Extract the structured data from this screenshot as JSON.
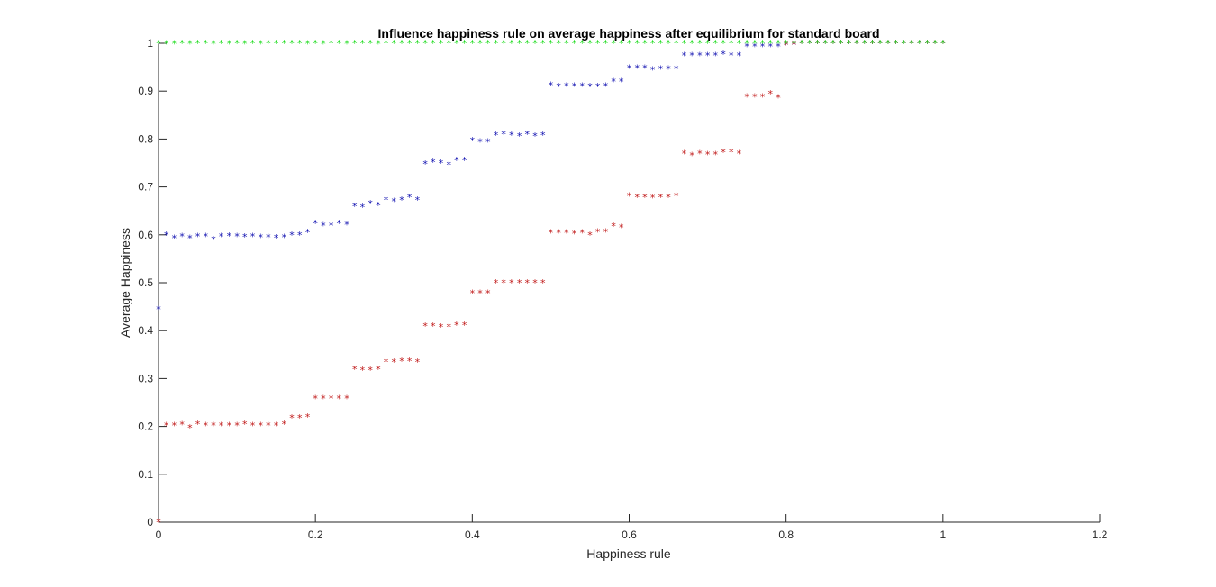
{
  "chart_data": {
    "type": "scatter",
    "title": "Influence happiness rule on average happiness after equilibrium for standard board",
    "xlabel": "Happiness rule",
    "ylabel": "Average Happiness",
    "xlim": [
      0,
      1.2
    ],
    "ylim": [
      0,
      1
    ],
    "xticks": [
      "0",
      "0.2",
      "0.4",
      "0.6",
      "0.8",
      "1",
      "1.2"
    ],
    "yticks": [
      "0",
      "0.1",
      "0.2",
      "0.3",
      "0.4",
      "0.5",
      "0.6",
      "0.7",
      "0.8",
      "0.9",
      "1"
    ],
    "grid": false,
    "legend": "none",
    "marker": "*",
    "colors": {
      "series1": "#1010b0",
      "series2": "#c01818",
      "series3": "#22dd22"
    },
    "series": [
      {
        "color": "#1010b0",
        "x": [
          0,
          0.01,
          0.02,
          0.03,
          0.04,
          0.05,
          0.06,
          0.07,
          0.08,
          0.09,
          0.1,
          0.11,
          0.12,
          0.13,
          0.14,
          0.15,
          0.16,
          0.17,
          0.18,
          0.19,
          0.2,
          0.21,
          0.22,
          0.23,
          0.24,
          0.25,
          0.26,
          0.27,
          0.28,
          0.29,
          0.3,
          0.31,
          0.32,
          0.33,
          0.34,
          0.35,
          0.36,
          0.37,
          0.38,
          0.39,
          0.4,
          0.41,
          0.42,
          0.43,
          0.44,
          0.45,
          0.46,
          0.47,
          0.48,
          0.49,
          0.5,
          0.51,
          0.52,
          0.53,
          0.54,
          0.55,
          0.56,
          0.57,
          0.58,
          0.59,
          0.6,
          0.61,
          0.62,
          0.63,
          0.64,
          0.65,
          0.66,
          0.67,
          0.68,
          0.69,
          0.7,
          0.71,
          0.72,
          0.73,
          0.74,
          0.75,
          0.76,
          0.77,
          0.78,
          0.79,
          0.8,
          0.81,
          0.82,
          0.83,
          0.84,
          0.85,
          0.86,
          0.87,
          0.88,
          0.89,
          0.9,
          0.91,
          0.92,
          0.93,
          0.94,
          0.95,
          0.96,
          0.97,
          0.98,
          0.99,
          1.0
        ],
        "y": [
          0.445,
          0.6,
          0.593,
          0.597,
          0.593,
          0.597,
          0.597,
          0.59,
          0.597,
          0.598,
          0.597,
          0.596,
          0.597,
          0.595,
          0.595,
          0.594,
          0.595,
          0.6,
          0.6,
          0.605,
          0.624,
          0.619,
          0.619,
          0.624,
          0.621,
          0.66,
          0.658,
          0.665,
          0.662,
          0.673,
          0.67,
          0.673,
          0.679,
          0.673,
          0.748,
          0.752,
          0.75,
          0.746,
          0.756,
          0.756,
          0.797,
          0.794,
          0.794,
          0.808,
          0.81,
          0.808,
          0.806,
          0.81,
          0.806,
          0.808,
          0.913,
          0.91,
          0.911,
          0.911,
          0.911,
          0.91,
          0.91,
          0.911,
          0.92,
          0.92,
          0.948,
          0.948,
          0.948,
          0.945,
          0.946,
          0.946,
          0.946,
          0.975,
          0.975,
          0.975,
          0.975,
          0.975,
          0.977,
          0.975,
          0.975,
          0.993,
          0.993,
          0.993,
          0.993,
          0.993,
          0.997,
          0.997,
          1.0,
          1.0,
          1.0,
          1.0,
          1.0,
          1.0,
          1.0,
          1.0,
          1.0,
          1.0,
          1.0,
          1.0,
          1.0,
          1.0,
          1.0,
          1.0,
          1.0,
          1.0,
          1.0
        ]
      },
      {
        "color": "#c01818",
        "x": [
          0,
          0.01,
          0.02,
          0.03,
          0.04,
          0.05,
          0.06,
          0.07,
          0.08,
          0.09,
          0.1,
          0.11,
          0.12,
          0.13,
          0.14,
          0.15,
          0.16,
          0.17,
          0.18,
          0.19,
          0.2,
          0.21,
          0.22,
          0.23,
          0.24,
          0.25,
          0.26,
          0.27,
          0.28,
          0.29,
          0.3,
          0.31,
          0.32,
          0.33,
          0.34,
          0.35,
          0.36,
          0.37,
          0.38,
          0.39,
          0.4,
          0.41,
          0.42,
          0.43,
          0.44,
          0.45,
          0.46,
          0.47,
          0.48,
          0.49,
          0.5,
          0.51,
          0.52,
          0.53,
          0.54,
          0.55,
          0.56,
          0.57,
          0.58,
          0.59,
          0.6,
          0.61,
          0.62,
          0.63,
          0.64,
          0.65,
          0.66,
          0.67,
          0.68,
          0.69,
          0.7,
          0.71,
          0.72,
          0.73,
          0.74,
          0.75,
          0.76,
          0.77,
          0.78,
          0.79,
          0.8,
          0.81,
          0.82,
          0.83,
          0.84,
          0.85,
          0.86,
          0.87,
          0.88,
          0.89,
          0.9,
          0.91,
          0.92,
          0.93,
          0.94,
          0.95,
          0.96,
          0.97,
          0.98,
          0.99,
          1.0
        ],
        "y": [
          0.0,
          0.202,
          0.202,
          0.204,
          0.197,
          0.205,
          0.202,
          0.202,
          0.202,
          0.202,
          0.202,
          0.205,
          0.202,
          0.202,
          0.202,
          0.202,
          0.205,
          0.218,
          0.218,
          0.22,
          0.258,
          0.258,
          0.258,
          0.258,
          0.258,
          0.32,
          0.318,
          0.318,
          0.32,
          0.335,
          0.335,
          0.336,
          0.336,
          0.335,
          0.41,
          0.41,
          0.408,
          0.408,
          0.412,
          0.412,
          0.478,
          0.478,
          0.478,
          0.5,
          0.5,
          0.5,
          0.5,
          0.5,
          0.5,
          0.5,
          0.604,
          0.604,
          0.604,
          0.602,
          0.604,
          0.6,
          0.606,
          0.606,
          0.618,
          0.616,
          0.681,
          0.679,
          0.679,
          0.678,
          0.679,
          0.679,
          0.681,
          0.77,
          0.766,
          0.77,
          0.768,
          0.768,
          0.773,
          0.773,
          0.77,
          0.888,
          0.888,
          0.888,
          0.895,
          0.886,
          0.997,
          0.997,
          1.0,
          1.0,
          1.0,
          1.0,
          1.0,
          1.0,
          1.0,
          1.0,
          1.0,
          1.0,
          1.0,
          1.0,
          1.0,
          1.0,
          1.0,
          1.0,
          1.0,
          1.0,
          1.0
        ]
      },
      {
        "color": "#22dd22",
        "x": [
          0,
          0.01,
          0.02,
          0.03,
          0.04,
          0.05,
          0.06,
          0.07,
          0.08,
          0.09,
          0.1,
          0.11,
          0.12,
          0.13,
          0.14,
          0.15,
          0.16,
          0.17,
          0.18,
          0.19,
          0.2,
          0.21,
          0.22,
          0.23,
          0.24,
          0.25,
          0.26,
          0.27,
          0.28,
          0.29,
          0.3,
          0.31,
          0.32,
          0.33,
          0.34,
          0.35,
          0.36,
          0.37,
          0.38,
          0.39,
          0.4,
          0.41,
          0.42,
          0.43,
          0.44,
          0.45,
          0.46,
          0.47,
          0.48,
          0.49,
          0.5,
          0.51,
          0.52,
          0.53,
          0.54,
          0.55,
          0.56,
          0.57,
          0.58,
          0.59,
          0.6,
          0.61,
          0.62,
          0.63,
          0.64,
          0.65,
          0.66,
          0.67,
          0.68,
          0.69,
          0.7,
          0.71,
          0.72,
          0.73,
          0.74,
          0.75,
          0.76,
          0.77,
          0.78,
          0.79,
          0.8,
          0.81,
          0.82,
          0.83,
          0.84,
          0.85,
          0.86,
          0.87,
          0.88,
          0.89,
          0.9,
          0.91,
          0.92,
          0.93,
          0.94,
          0.95,
          0.96,
          0.97,
          0.98,
          0.99,
          1.0
        ],
        "y": [
          1.0,
          0.999,
          0.999,
          1.0,
          0.999,
          1.0,
          1.0,
          0.999,
          1.0,
          0.999,
          1.0,
          0.999,
          1.0,
          0.999,
          1.0,
          1.0,
          1.0,
          1.0,
          1.0,
          0.999,
          1.0,
          0.999,
          1.0,
          1.0,
          0.999,
          1.0,
          1.0,
          1.0,
          0.999,
          1.0,
          1.0,
          1.0,
          1.0,
          1.0,
          1.0,
          1.0,
          1.0,
          1.0,
          1.0,
          1.0,
          1.0,
          1.0,
          1.0,
          1.0,
          1.0,
          1.0,
          1.0,
          1.0,
          1.0,
          1.0,
          1.0,
          1.0,
          1.0,
          1.0,
          1.0,
          1.0,
          1.0,
          1.0,
          1.0,
          1.0,
          1.0,
          1.0,
          1.0,
          1.0,
          1.0,
          1.0,
          1.0,
          1.0,
          1.0,
          1.0,
          1.0,
          1.0,
          1.0,
          1.0,
          1.0,
          1.0,
          1.0,
          1.0,
          1.0,
          1.0,
          1.0,
          1.0,
          1.0,
          1.0,
          1.0,
          1.0,
          1.0,
          1.0,
          1.0,
          1.0,
          1.0,
          1.0,
          1.0,
          1.0,
          1.0,
          1.0,
          1.0,
          1.0,
          1.0,
          1.0,
          1.0
        ]
      }
    ]
  }
}
